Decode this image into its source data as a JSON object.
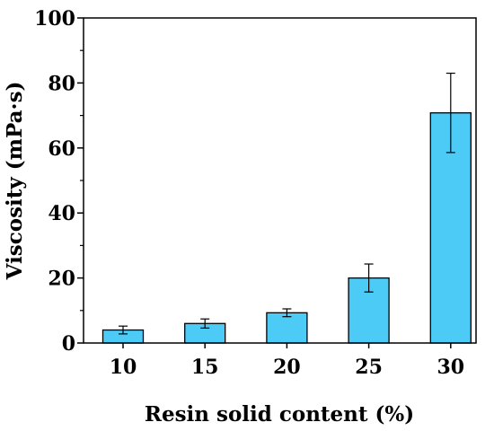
{
  "chart_data": {
    "type": "bar",
    "title": "",
    "xlabel": "Resin solid content (%)",
    "ylabel": "Viscosity (mPa·s)",
    "categories": [
      "10",
      "15",
      "20",
      "25",
      "30"
    ],
    "values": [
      4.0,
      6.0,
      9.3,
      20.0,
      70.8
    ],
    "error": [
      1.2,
      1.4,
      1.2,
      4.3,
      12.2
    ],
    "ylim": [
      0,
      100
    ],
    "yticks": [
      "0",
      "20",
      "40",
      "60",
      "80",
      "100"
    ],
    "bar_color": "#4dcbf7",
    "grid": false,
    "legend": "none"
  }
}
